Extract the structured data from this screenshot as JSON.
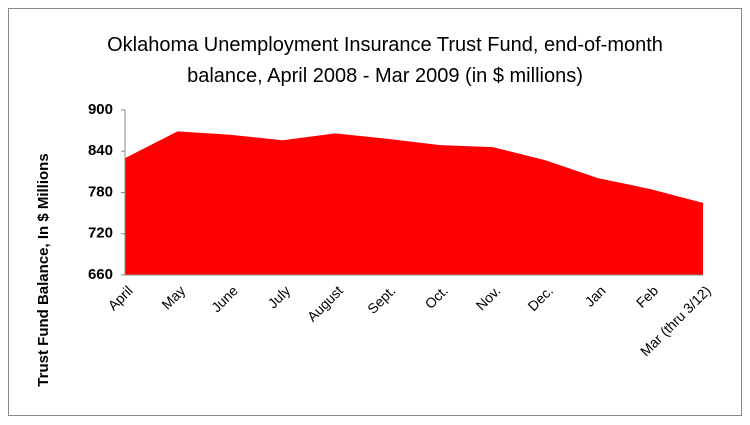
{
  "chart_data": {
    "type": "area",
    "title": "Oklahoma Unemployment Insurance Trust Fund, end-of-month balance, April 2008 - Mar 2009 (in $ millions)",
    "y_label": "Trust Fund Balance,  In $ Millions",
    "categories": [
      "April",
      "May",
      "June",
      "July",
      "August",
      "Sept.",
      "Oct.",
      "Nov.",
      "Dec.",
      "Jan",
      "Feb",
      "Mar (thru 3/12)"
    ],
    "values": [
      830,
      869,
      864,
      856,
      866,
      858,
      849,
      846,
      827,
      801,
      785,
      765
    ],
    "color": "#ff0000",
    "ylim": [
      660,
      900
    ],
    "yticks": [
      660,
      720,
      780,
      840,
      900
    ],
    "grid": false
  }
}
